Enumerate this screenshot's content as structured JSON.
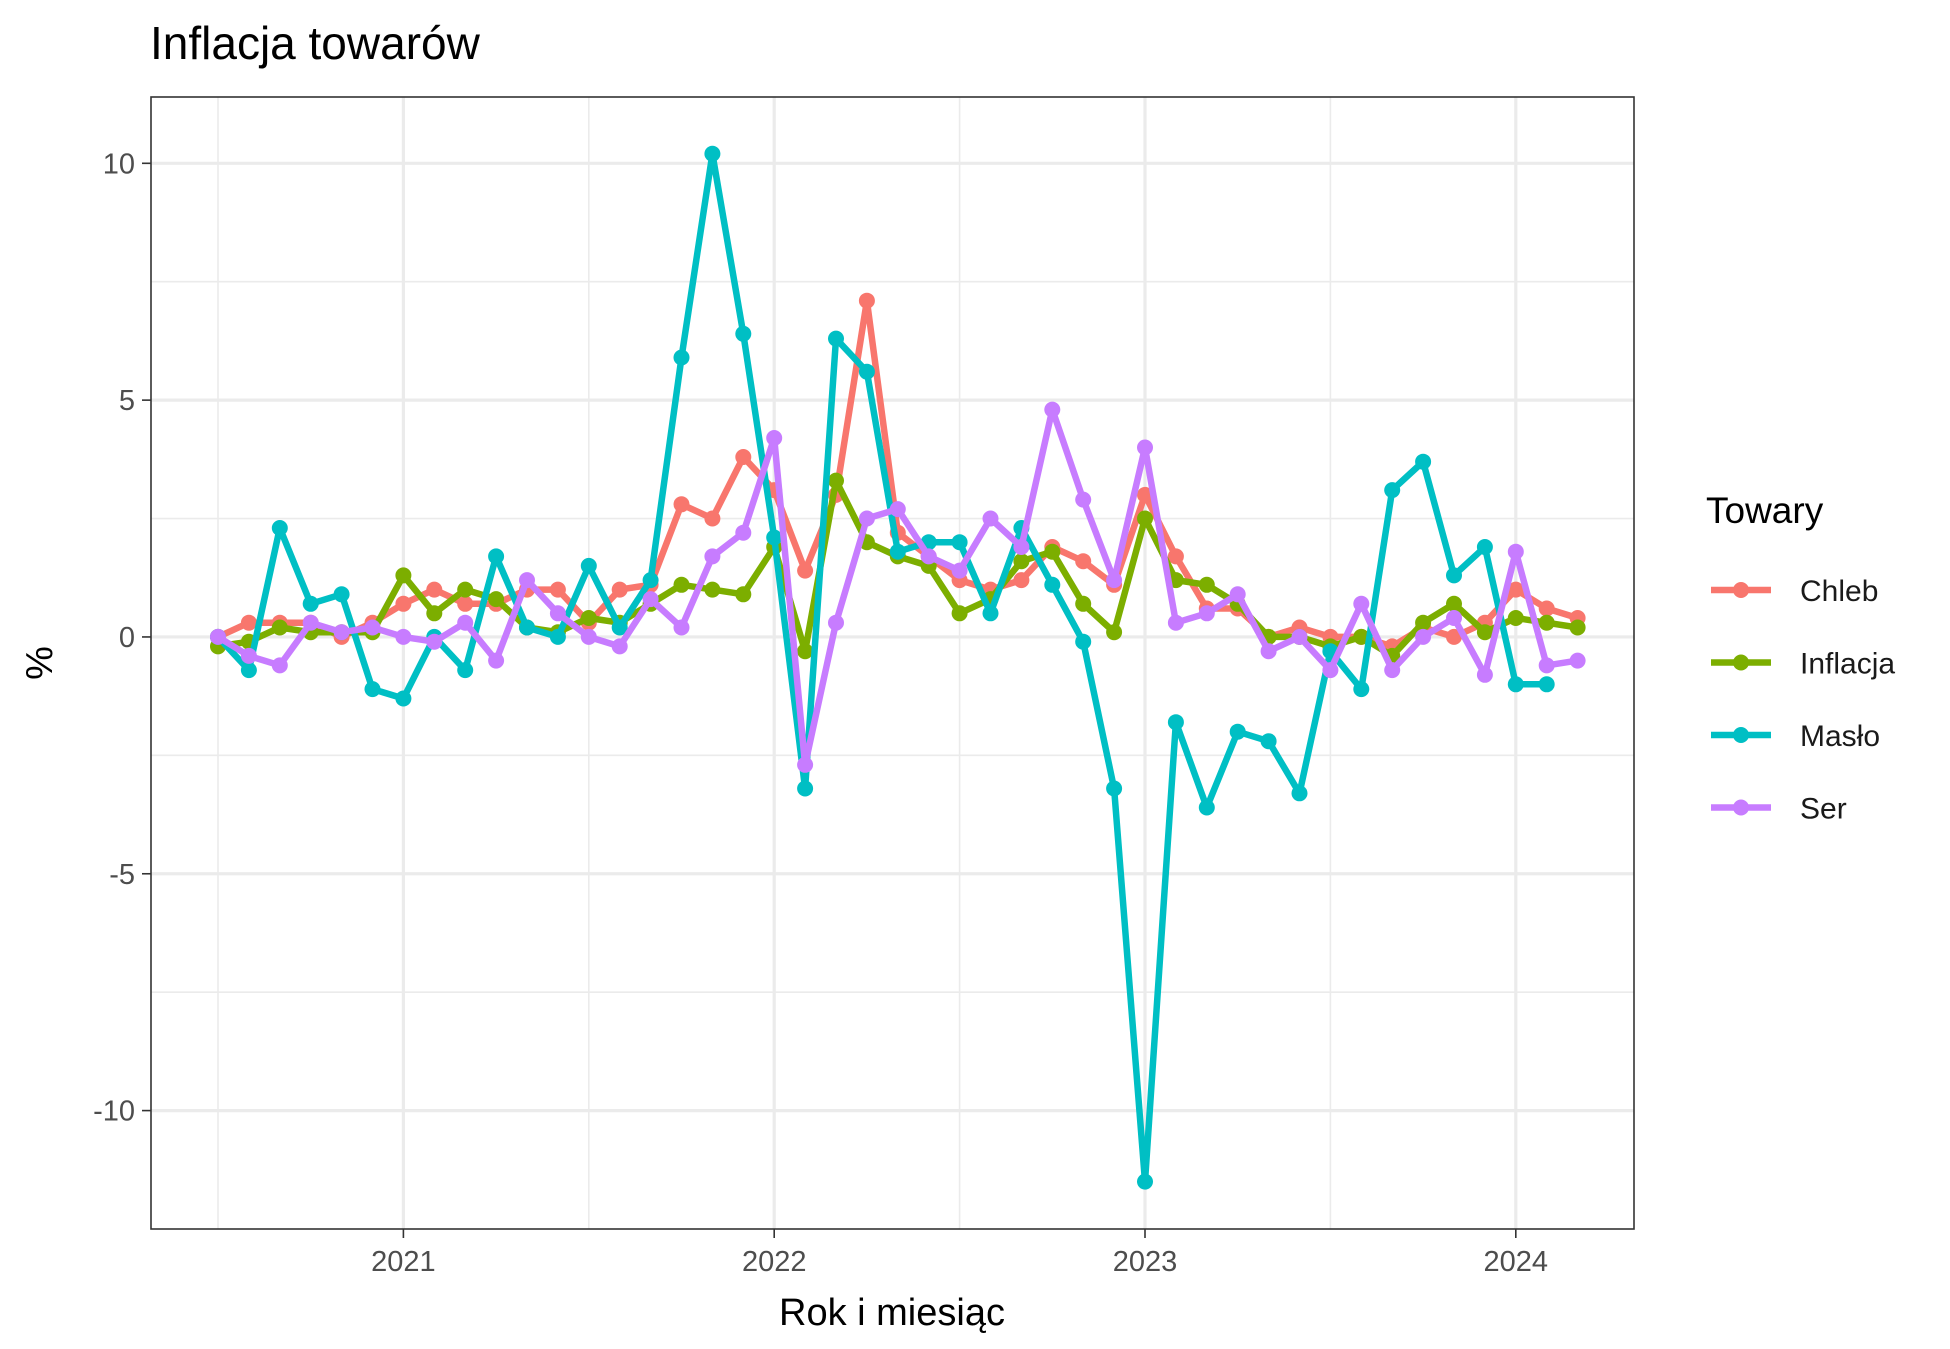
{
  "chart_data": {
    "type": "line",
    "title": "Inflacja towarów",
    "xlabel": "Rok i miesiąc",
    "ylabel": "%",
    "legend_title": "Towary",
    "legend_position": "right",
    "grid": true,
    "x_start": "2020-07",
    "x_ticks": [
      "2021",
      "2022",
      "2023",
      "2024"
    ],
    "y_ticks": [
      "10",
      "5",
      "0",
      "-5",
      "-10"
    ],
    "ylim": [
      -12.5,
      11.4
    ],
    "series": [
      {
        "name": "Chleb",
        "color": "#F8766D",
        "values": [
          0.0,
          0.3,
          0.3,
          0.3,
          0.0,
          0.3,
          0.7,
          1.0,
          0.7,
          0.7,
          1.0,
          1.0,
          0.3,
          1.0,
          1.1,
          2.8,
          2.5,
          3.8,
          3.1,
          1.4,
          3.0,
          7.1,
          2.2,
          1.7,
          1.2,
          1.0,
          1.2,
          1.9,
          1.6,
          1.1,
          3.0,
          1.7,
          0.6,
          0.6,
          0.0,
          0.2,
          0.0,
          0.0,
          -0.2,
          0.2,
          0.0,
          0.3,
          1.0,
          0.6,
          0.4
        ]
      },
      {
        "name": "Inflacja",
        "color": "#7CAE00",
        "values": [
          -0.2,
          -0.1,
          0.2,
          0.1,
          0.1,
          0.1,
          1.3,
          0.5,
          1.0,
          0.8,
          0.2,
          0.1,
          0.4,
          0.3,
          0.7,
          1.1,
          1.0,
          0.9,
          1.9,
          -0.3,
          3.3,
          2.0,
          1.7,
          1.5,
          0.5,
          0.8,
          1.6,
          1.8,
          0.7,
          0.1,
          2.5,
          1.2,
          1.1,
          0.7,
          0.0,
          0.0,
          -0.2,
          0.0,
          -0.4,
          0.3,
          0.7,
          0.1,
          0.4,
          0.3,
          0.2
        ]
      },
      {
        "name": "Masło",
        "color": "#00BFC4",
        "values": [
          0.0,
          -0.7,
          2.3,
          0.7,
          0.9,
          -1.1,
          -1.3,
          0.0,
          -0.7,
          1.7,
          0.2,
          0.0,
          1.5,
          0.2,
          1.2,
          5.9,
          10.2,
          6.4,
          2.1,
          -3.2,
          6.3,
          5.6,
          1.8,
          2.0,
          2.0,
          0.5,
          2.3,
          1.1,
          -0.1,
          -3.2,
          -11.5,
          -1.8,
          -3.6,
          -2.0,
          -2.2,
          -3.3,
          -0.3,
          -1.1,
          3.1,
          3.7,
          1.3,
          1.9,
          -1.0,
          -1.0
        ]
      },
      {
        "name": "Ser",
        "color": "#C77CFF",
        "values": [
          0.0,
          -0.4,
          -0.6,
          0.3,
          0.1,
          0.2,
          0.0,
          -0.1,
          0.3,
          -0.5,
          1.2,
          0.5,
          0.0,
          -0.2,
          0.8,
          0.2,
          1.7,
          2.2,
          4.2,
          -2.7,
          0.3,
          2.5,
          2.7,
          1.7,
          1.4,
          2.5,
          1.9,
          4.8,
          2.9,
          1.2,
          4.0,
          0.3,
          0.5,
          0.9,
          -0.3,
          0.0,
          -0.7,
          0.7,
          -0.7,
          0.0,
          0.4,
          -0.8,
          1.8,
          -0.6,
          -0.5
        ]
      }
    ]
  }
}
